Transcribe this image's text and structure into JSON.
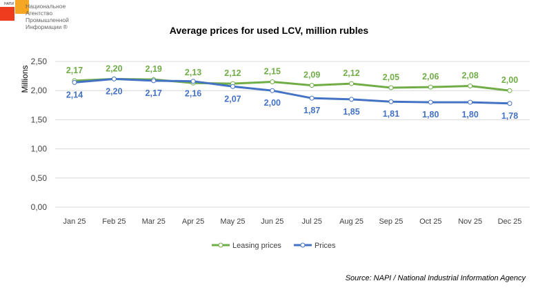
{
  "logo": {
    "abbr": "НАПИ",
    "lines": [
      "Национальное",
      "Агентство",
      "Промышленной",
      "Информации ®"
    ]
  },
  "source": "Source: NAPI / National Industrial Information Agency",
  "chart_data": {
    "type": "line",
    "title": "Average prices for used LCV, million rubles",
    "ylabel": "Millions",
    "xlabel": "",
    "ylim": [
      0,
      2.5
    ],
    "yticks": [
      "0,00",
      "0,50",
      "1,00",
      "1,50",
      "2,00",
      "2,50"
    ],
    "grid": true,
    "legend": "bottom",
    "categories": [
      "Jan 25",
      "Feb 25",
      "Mar 25",
      "Apr 25",
      "May 25",
      "Jun 25",
      "Jul 25",
      "Aug 25",
      "Sep 25",
      "Oct 25",
      "Nov 25",
      "Dec 25"
    ],
    "series": [
      {
        "name": "Leasing prices",
        "color": "#70ad47",
        "labels_position": "above",
        "values": [
          2.17,
          2.2,
          2.19,
          2.13,
          2.12,
          2.15,
          2.09,
          2.12,
          2.05,
          2.06,
          2.08,
          2.0
        ]
      },
      {
        "name": "Prices",
        "color": "#4472c4",
        "labels_position": "below",
        "values": [
          2.14,
          2.2,
          2.17,
          2.16,
          2.07,
          2.0,
          1.87,
          1.85,
          1.81,
          1.8,
          1.8,
          1.78
        ]
      }
    ]
  }
}
